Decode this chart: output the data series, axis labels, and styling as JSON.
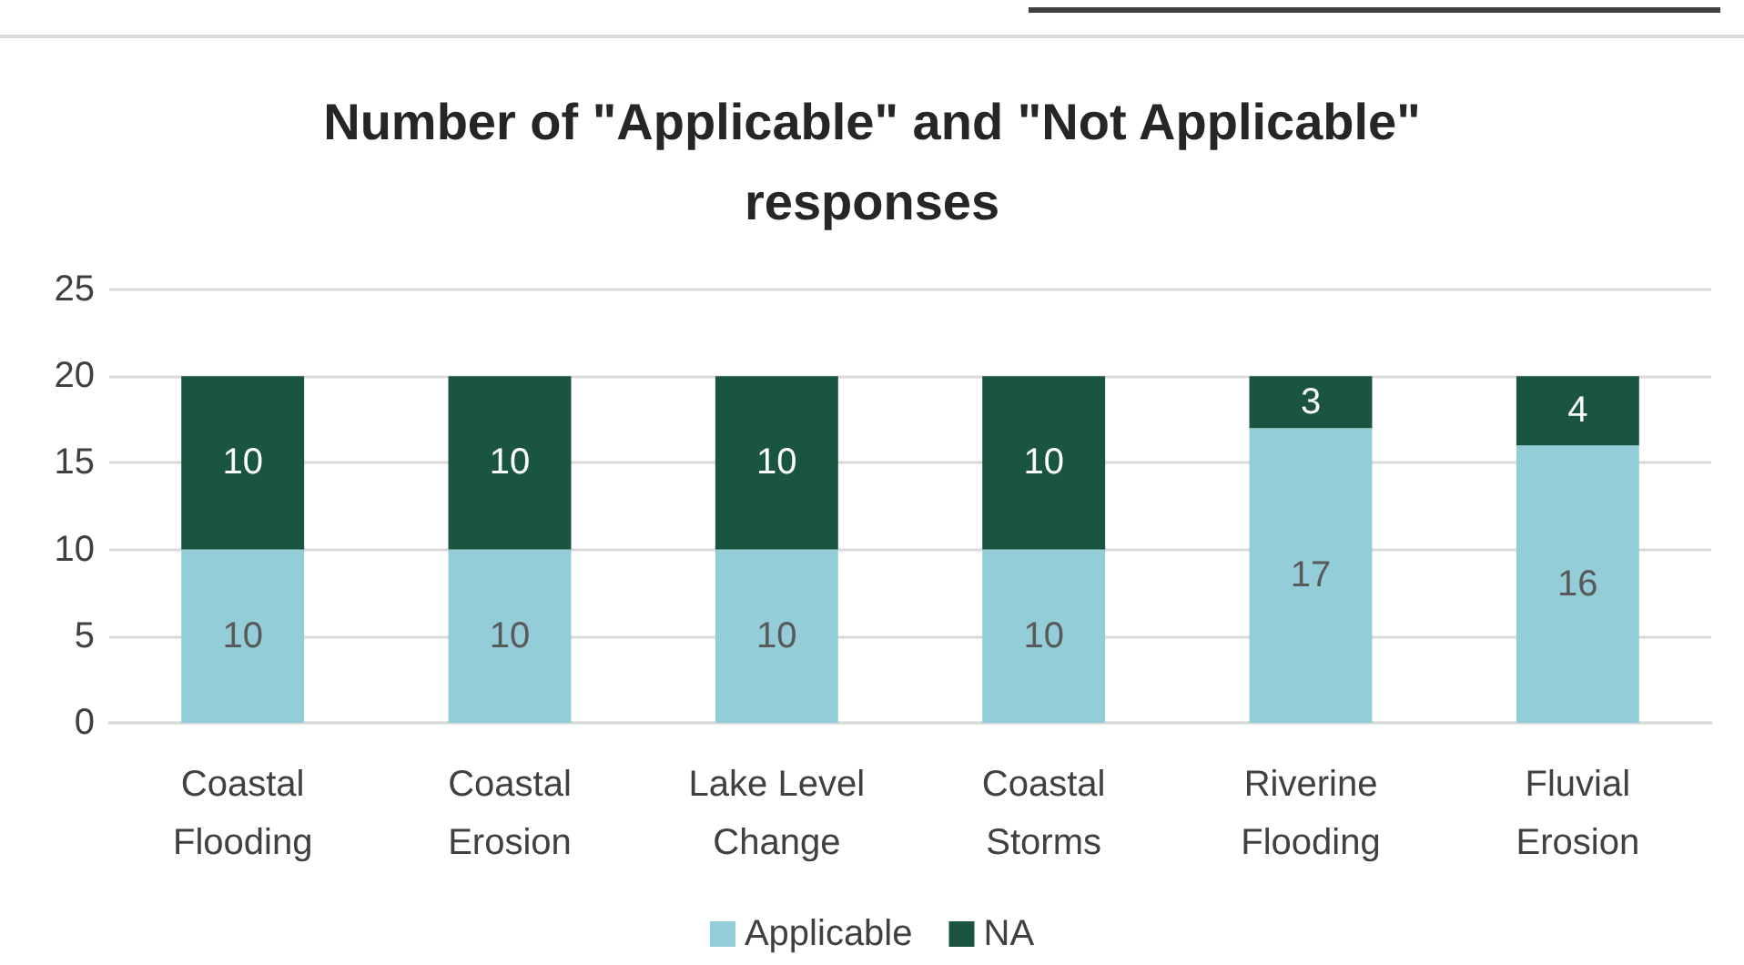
{
  "chart_data": {
    "type": "bar",
    "title": "Number of \"Applicable\" and \"Not Applicable\" responses",
    "categories": [
      "Coastal\nFlooding",
      "Coastal\nErosion",
      "Lake Level\nChange",
      "Coastal\nStorms",
      "Riverine\nFlooding",
      "Fluvial\nErosion"
    ],
    "series": [
      {
        "name": "Applicable",
        "color": "#92cdd8",
        "values": [
          10,
          10,
          10,
          10,
          17,
          16
        ]
      },
      {
        "name": "NA",
        "color": "#1a5542",
        "values": [
          10,
          10,
          10,
          10,
          3,
          4
        ]
      }
    ],
    "stacked": true,
    "ylim": [
      0,
      25
    ],
    "yticks": [
      0,
      5,
      10,
      15,
      20,
      25
    ],
    "grid": "y",
    "legend": "bottom",
    "data_labels": true
  }
}
